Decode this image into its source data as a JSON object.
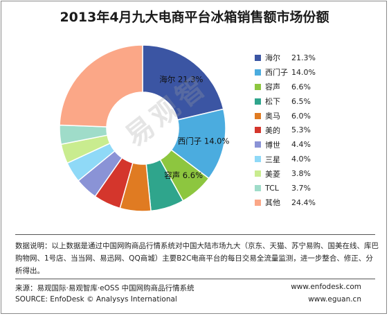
{
  "chart_data": {
    "type": "pie",
    "title": "2013年4月九大电商平台冰箱销售额市场份额",
    "donut": true,
    "legend_position": "right",
    "slices": [
      {
        "name": "海尔",
        "value": 21.3,
        "display": "21.3%",
        "color": "#3b55a3"
      },
      {
        "name": "西门子",
        "value": 14.0,
        "display": "14.0%",
        "color": "#4bacdf"
      },
      {
        "name": "容声",
        "value": 6.6,
        "display": "6.6%",
        "color": "#8dc63f"
      },
      {
        "name": "松下",
        "value": 6.5,
        "display": "6.5%",
        "color": "#2fa58c"
      },
      {
        "name": "奥马",
        "value": 6.0,
        "display": "6.0%",
        "color": "#e07b22"
      },
      {
        "name": "美的",
        "value": 5.3,
        "display": "5.3%",
        "color": "#d4362c"
      },
      {
        "name": "博世",
        "value": 4.4,
        "display": "4.4%",
        "color": "#8a93d6"
      },
      {
        "name": "三星",
        "value": 4.0,
        "display": "4.0%",
        "color": "#8fd9f7"
      },
      {
        "name": "美菱",
        "value": 3.8,
        "display": "3.8%",
        "color": "#c9ec8f"
      },
      {
        "name": "TCL",
        "value": 3.7,
        "display": "3.7%",
        "color": "#9fdcc9"
      },
      {
        "name": "其他",
        "value": 24.4,
        "display": "24.4%",
        "color": "#fba787"
      }
    ],
    "labeled_slices": [
      "海尔",
      "西门子",
      "容声"
    ]
  },
  "watermark": "易观智",
  "note": "数据说明：以上数据是通过中国网购商品行情系统对中国大陆市场九大（京东、天猫、苏宁易购、国美在线、库巴购物网、1号店、当当网、易迅网、QQ商城）主要B2C电商平台的每日交易全流量监测，进一步整合、修正、分析得出。",
  "footer": {
    "source_cn": "来源：易观国际·易观智库·eOSS 中国网购商品行情系统",
    "source_en": "SOURCE: EnfoDesk © Analysys International",
    "site1": "www.enfodesk.com",
    "site2": "www.eguan.cn"
  }
}
